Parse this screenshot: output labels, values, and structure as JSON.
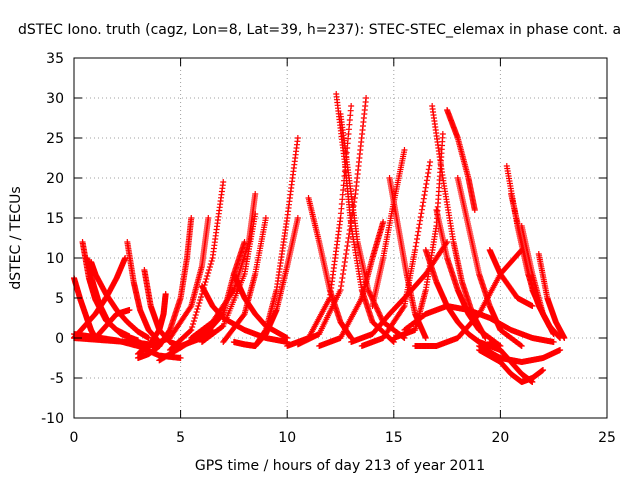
{
  "chart_data": {
    "type": "scatter",
    "title": "dSTEC Iono. truth (cagz, Lon=8, Lat=39, h=237): STEC-STEC_elemax in phase cont. a",
    "xlabel": "GPS time / hours of day 213 of year 2011",
    "ylabel": "dSTEC  / TECUs",
    "xlim": [
      0,
      25
    ],
    "ylim": [
      -10,
      35
    ],
    "x_ticks": [
      0,
      5,
      10,
      15,
      20,
      25
    ],
    "y_ticks": [
      -10,
      -5,
      0,
      5,
      10,
      15,
      20,
      25,
      30,
      35
    ],
    "grid": true,
    "marker": "+",
    "colors": {
      "series": "#ff0000",
      "grid": "#a0a0a0",
      "frame": "#000000"
    },
    "series": [
      {
        "x": [
          0.0,
          0.3,
          0.6,
          0.8,
          1.0
        ],
        "y": [
          7.5,
          4.8,
          2.5,
          1.0,
          0.0
        ]
      },
      {
        "x": [
          0.4,
          0.7,
          1.0,
          1.5,
          2.2,
          3.0
        ],
        "y": [
          12.0,
          7.5,
          4.8,
          2.2,
          0.5,
          -0.3
        ]
      },
      {
        "x": [
          0.6,
          0.9,
          1.2,
          1.6,
          2.0,
          2.6
        ],
        "y": [
          10.0,
          6.8,
          4.2,
          2.0,
          1.0,
          0.2
        ]
      },
      {
        "x": [
          0.8,
          1.0,
          1.5,
          2.0,
          2.5,
          3.0,
          3.5
        ],
        "y": [
          9.5,
          8.0,
          5.5,
          3.5,
          2.0,
          0.8,
          0.0
        ]
      },
      {
        "x": [
          0.0,
          0.5,
          1.0,
          1.5,
          2.0,
          2.4
        ],
        "y": [
          0.0,
          1.5,
          3.0,
          5.0,
          7.5,
          10.0
        ]
      },
      {
        "x": [
          0.0,
          1.0,
          2.0,
          3.0,
          3.5,
          4.0
        ],
        "y": [
          0.0,
          -0.2,
          -0.4,
          -0.6,
          -0.8,
          -1.0
        ]
      },
      {
        "x": [
          1.0,
          1.5,
          2.0,
          2.6
        ],
        "y": [
          0.0,
          1.5,
          3.0,
          3.5
        ]
      },
      {
        "x": [
          2.5,
          2.8,
          3.1,
          3.5,
          4.0
        ],
        "y": [
          12.0,
          7.0,
          3.5,
          1.0,
          -0.5
        ]
      },
      {
        "x": [
          3.3,
          3.6,
          4.0,
          4.5,
          5.0
        ],
        "y": [
          8.5,
          4.0,
          1.0,
          -0.5,
          -1.0
        ]
      },
      {
        "x": [
          3.0,
          3.5,
          4.0,
          4.2,
          4.3
        ],
        "y": [
          -2.0,
          -1.0,
          1.0,
          3.0,
          5.5
        ]
      },
      {
        "x": [
          4.0,
          5.0,
          6.0,
          6.5
        ],
        "y": [
          -2.8,
          -1.2,
          0.5,
          1.0
        ]
      },
      {
        "x": [
          0.0,
          1.0,
          2.0,
          3.0,
          4.0,
          5.0
        ],
        "y": [
          0.5,
          0.1,
          -0.3,
          -1.0,
          -2.2,
          -2.5
        ]
      },
      {
        "x": [
          3.0,
          3.5,
          4.0,
          4.5,
          5.0,
          5.3,
          5.5
        ],
        "y": [
          -2.5,
          -2.0,
          -1.0,
          1.0,
          5.0,
          10.0,
          15.0
        ]
      },
      {
        "x": [
          3.5,
          4.5,
          5.5,
          6.0,
          6.3
        ],
        "y": [
          -1.0,
          0.0,
          4.0,
          9.0,
          15.0
        ]
      },
      {
        "x": [
          4.5,
          5.5,
          6.5,
          7.0
        ],
        "y": [
          -1.5,
          1.0,
          10.0,
          19.5
        ]
      },
      {
        "x": [
          5.0,
          6.0,
          7.0,
          7.5,
          8.0
        ],
        "y": [
          -1.0,
          0.0,
          3.0,
          8.0,
          12.0
        ]
      },
      {
        "x": [
          6.0,
          7.0,
          8.0,
          8.5
        ],
        "y": [
          -0.5,
          1.5,
          8.0,
          15.5
        ]
      },
      {
        "x": [
          7.0,
          8.0,
          8.5,
          9.0
        ],
        "y": [
          -0.5,
          3.0,
          8.0,
          15.0
        ]
      },
      {
        "x": [
          5.5,
          6.5,
          7.5,
          8.2,
          8.5
        ],
        "y": [
          0.0,
          2.0,
          6.0,
          12.0,
          18.0
        ]
      },
      {
        "x": [
          7.5,
          8.0,
          8.5,
          9.0,
          9.5,
          10.0,
          10.5
        ],
        "y": [
          -0.5,
          -0.8,
          -1.0,
          1.0,
          6.0,
          15.0,
          25.0
        ]
      },
      {
        "x": [
          8.5,
          9.0,
          9.5,
          10.0,
          10.5
        ],
        "y": [
          -1.0,
          0.5,
          3.5,
          9.0,
          15.0
        ]
      },
      {
        "x": [
          7.5,
          8.0,
          8.5,
          9.0,
          10.0
        ],
        "y": [
          8.0,
          5.0,
          3.0,
          1.5,
          0.0
        ]
      },
      {
        "x": [
          6.0,
          6.5,
          7.0,
          8.0,
          9.0,
          10.0
        ],
        "y": [
          6.5,
          4.0,
          2.5,
          1.0,
          0.0,
          -0.5
        ]
      },
      {
        "x": [
          11.0,
          11.5,
          12.0,
          12.5,
          13.0
        ],
        "y": [
          17.5,
          12.0,
          6.0,
          2.0,
          0.0
        ]
      },
      {
        "x": [
          12.3,
          12.7,
          13.0,
          13.5,
          14.0,
          15.0
        ],
        "y": [
          30.5,
          22.0,
          14.0,
          6.0,
          2.0,
          -0.5
        ]
      },
      {
        "x": [
          12.5,
          12.9,
          13.3,
          13.8,
          14.5,
          15.5
        ],
        "y": [
          28.0,
          20.0,
          12.0,
          6.0,
          2.0,
          0.0
        ]
      },
      {
        "x": [
          10.0,
          11.0,
          12.0,
          12.5,
          13.0
        ],
        "y": [
          -1.0,
          0.0,
          5.0,
          15.0,
          29.0
        ]
      },
      {
        "x": [
          10.5,
          11.5,
          12.5,
          13.2,
          13.7
        ],
        "y": [
          -0.8,
          0.5,
          6.0,
          18.0,
          30.0
        ]
      },
      {
        "x": [
          11.5,
          12.5,
          13.5,
          14.0,
          14.5
        ],
        "y": [
          -1.0,
          0.0,
          5.0,
          10.0,
          14.5
        ]
      },
      {
        "x": [
          14.8,
          15.2,
          15.6,
          16.0,
          16.5
        ],
        "y": [
          20.0,
          14.0,
          8.0,
          3.0,
          0.0
        ]
      },
      {
        "x": [
          14.0,
          14.5,
          15.0,
          15.5
        ],
        "y": [
          4.0,
          10.0,
          17.0,
          23.5
        ]
      },
      {
        "x": [
          13.0,
          14.0,
          14.8,
          15.5,
          16.5,
          17.5
        ],
        "y": [
          -0.5,
          0.5,
          3.0,
          5.0,
          8.0,
          12.0
        ]
      },
      {
        "x": [
          13.5,
          14.5,
          15.5,
          16.0,
          16.7
        ],
        "y": [
          -1.0,
          0.0,
          4.0,
          11.0,
          22.0
        ]
      },
      {
        "x": [
          15.0,
          16.0,
          16.5,
          17.0,
          17.3
        ],
        "y": [
          0.0,
          1.0,
          6.0,
          14.0,
          25.5
        ]
      },
      {
        "x": [
          16.5,
          17.0,
          17.5,
          18.0,
          18.5,
          19.0,
          19.5,
          20.0
        ],
        "y": [
          11.0,
          7.0,
          4.0,
          2.0,
          0.5,
          -0.5,
          -1.0,
          -1.5
        ]
      },
      {
        "x": [
          16.8,
          17.3,
          17.8,
          18.2,
          18.7,
          19.3
        ],
        "y": [
          29.0,
          20.0,
          12.0,
          7.0,
          3.0,
          0.0
        ]
      },
      {
        "x": [
          17.0,
          17.5,
          18.0,
          18.5,
          19.0,
          20.0
        ],
        "y": [
          16.0,
          10.0,
          6.0,
          3.0,
          1.0,
          -1.0
        ]
      },
      {
        "x": [
          17.5,
          18.0,
          18.5,
          18.8
        ],
        "y": [
          28.5,
          25.0,
          20.0,
          16.0
        ]
      },
      {
        "x": [
          18.0,
          18.5,
          19.0,
          19.5,
          20.0,
          21.0
        ],
        "y": [
          20.0,
          14.0,
          8.0,
          4.0,
          1.0,
          -1.0
        ]
      },
      {
        "x": [
          16.0,
          17.0,
          18.0,
          19.0,
          20.0,
          21.0
        ],
        "y": [
          -1.0,
          -1.0,
          0.0,
          3.0,
          8.0,
          11.0
        ]
      },
      {
        "x": [
          19.0,
          20.0,
          21.0,
          22.0,
          22.8
        ],
        "y": [
          -1.0,
          -2.5,
          -3.0,
          -2.5,
          -1.5
        ]
      },
      {
        "x": [
          19.0,
          20.0,
          20.5,
          21.0,
          21.5,
          22.0
        ],
        "y": [
          -1.5,
          -3.0,
          -4.5,
          -5.5,
          -5.0,
          -4.0
        ]
      },
      {
        "x": [
          19.5,
          20.0,
          20.5,
          21.0,
          21.5
        ],
        "y": [
          -0.5,
          -1.5,
          -3.0,
          -4.5,
          -5.5
        ]
      },
      {
        "x": [
          19.5,
          20.0,
          20.8,
          21.5
        ],
        "y": [
          11.0,
          8.0,
          5.0,
          4.0
        ]
      },
      {
        "x": [
          20.3,
          20.8,
          21.3,
          21.8,
          22.3,
          22.8
        ],
        "y": [
          21.5,
          14.0,
          8.0,
          4.0,
          1.5,
          0.0
        ]
      },
      {
        "x": [
          20.5,
          21.0,
          21.5,
          22.0,
          22.5
        ],
        "y": [
          18.0,
          12.0,
          6.0,
          3.0,
          0.5
        ]
      },
      {
        "x": [
          21.0,
          21.5,
          22.0,
          22.5
        ],
        "y": [
          14.0,
          8.0,
          3.0,
          0.5
        ]
      },
      {
        "x": [
          21.8,
          22.2,
          22.6,
          23.0
        ],
        "y": [
          10.5,
          5.0,
          2.0,
          0.0
        ]
      },
      {
        "x": [
          15.5,
          16.5,
          17.5,
          18.5,
          19.5,
          20.5,
          21.5,
          22.5
        ],
        "y": [
          1.0,
          3.0,
          4.0,
          3.5,
          2.5,
          1.0,
          0.0,
          -0.5
        ]
      }
    ]
  }
}
